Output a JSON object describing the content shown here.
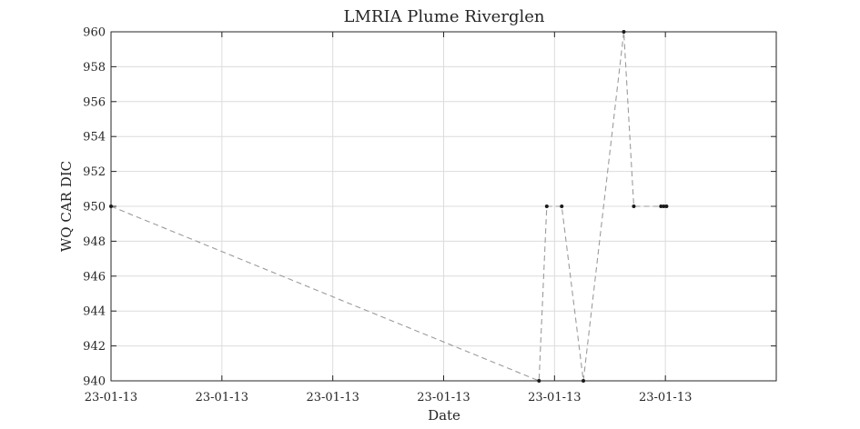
{
  "chart_data": {
    "type": "line",
    "title": "LMRIA Plume Riverglen",
    "xlabel": "Date",
    "ylabel": "WQ CAR DIC",
    "ylim": [
      940,
      960
    ],
    "xlim": [
      0,
      1.2
    ],
    "grid": true,
    "xticks": [
      0,
      0.2,
      0.4,
      0.6,
      0.8,
      1.0
    ],
    "xtick_labels": [
      "23-01-13",
      "23-01-13",
      "23-01-13",
      "23-01-13",
      "23-01-13",
      "23-01-13"
    ],
    "yticks": [
      940,
      942,
      944,
      946,
      948,
      950,
      952,
      954,
      956,
      958,
      960
    ],
    "series": [
      {
        "color": "#9b9b9b",
        "marker_color": "#1a1a1a",
        "x": [
          0.0,
          0.772,
          0.786,
          0.813,
          0.852,
          0.925,
          0.943,
          0.992,
          0.997,
          1.002
        ],
        "y": [
          950,
          940,
          950,
          950,
          940,
          960,
          950,
          950,
          950,
          950
        ]
      }
    ]
  }
}
